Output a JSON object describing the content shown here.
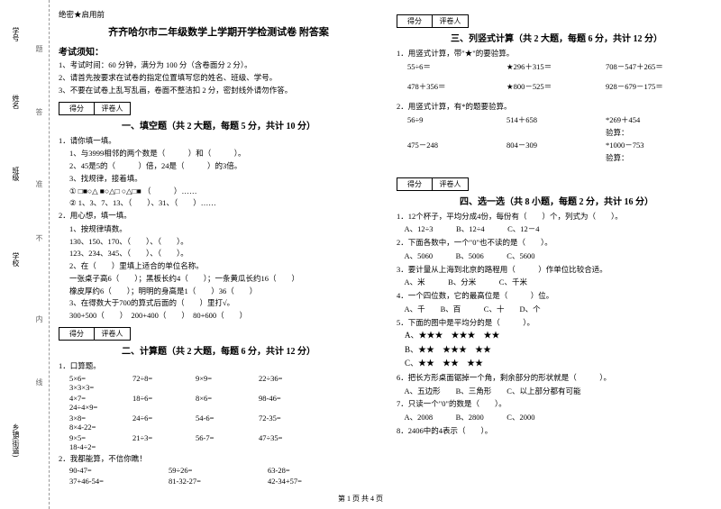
{
  "margin": {
    "labels": [
      "学号",
      "姓名",
      "班级",
      "学校",
      "乡镇(街道)"
    ],
    "side": [
      "题",
      "答",
      "准",
      "不",
      "内",
      "线",
      "封",
      ""
    ]
  },
  "secret": "绝密★启用前",
  "title": "齐齐哈尔市二年级数学上学期开学检测试卷 附答案",
  "notice": {
    "heading": "考试须知：",
    "items": [
      "1、考试时间：60 分钟，满分为 100 分（含卷面分 2 分）。",
      "2、请首先按要求在试卷的指定位置填写您的姓名、班级、学号。",
      "3、不要在试卷上乱写乱画，卷面不整洁扣 2 分，密封线外请勿作答。"
    ]
  },
  "scorebox": {
    "c1": "得分",
    "c2": "评卷人"
  },
  "sec1": {
    "title": "一、填空题（共 2 大题，每题 5 分，共计 10 分）",
    "q1": "1．请你填一填。",
    "q1_1": "1、与3999相邻的两个数是（　　　）和（　　　）。",
    "q1_2": "2、45是5的（　　　）倍，24是（　　　）的3倍。",
    "q1_3": "3、找规律，接着填。",
    "q1_3a": "① □■○△ ■○△□ ○△□■ （　　　）……",
    "q1_3b": "② 1、3、7、13、（　　）、31、（　　）……",
    "q2": "2．用心想，填一填。",
    "q2_1": "1、按规律填数。",
    "q2_1a": "130、150、170、（　　）、（　　）。",
    "q2_1b": "123、234、345、（　　）、（　　）。",
    "q2_2": "2、在（　　）里填上适合的单位名称。",
    "q2_2a": "一张桌子高6（　　）；黑板长约4（　　）；一条黄瓜长约16（　　）",
    "q2_2b": "橡皮厚约6（　　）；明明的身高是1（　　）36（　　）",
    "q2_3": "3、在得数大于700的算式后面的（　　）里打√。",
    "q2_3a": "300+500（　　）　200+400（　　）　80+600（　　）"
  },
  "sec2": {
    "title": "二、计算题（共 2 大题，每题 6 分，共计 12 分）",
    "q1": "1．口算题。",
    "rows": [
      [
        "5×6=",
        "72÷8=",
        "9×9=",
        "22÷36=",
        "3×3×3="
      ],
      [
        "4×7=",
        "18÷6=",
        "8×6=",
        "98-46=",
        "24÷4×9="
      ],
      [
        "3×8=",
        "24÷6=",
        "54-6=",
        "72-35=",
        "8×4-22="
      ],
      [
        "9×5=",
        "21÷3=",
        "56-7=",
        "47÷35=",
        "18-4÷2="
      ]
    ],
    "q2": "2．我都能算，不信你瞧！",
    "rows2": [
      [
        "90-47=",
        "59÷26=",
        "63-28="
      ],
      [
        "37+46-54=",
        "81-32-27=",
        "42-34+57="
      ]
    ]
  },
  "sec3": {
    "title": "三、列竖式计算（共 2 大题，每题 6 分，共计 12 分）",
    "q1": "1．用竖式计算，带\"★\"的要验算。",
    "rows": [
      [
        "55÷6＝",
        "★296＋315＝",
        "708－547＋265＝"
      ],
      [
        "478＋356＝",
        "★800－525＝",
        "928－679－175＝"
      ]
    ],
    "q2": "2．用竖式计算，有*的题要验算。",
    "rows2": [
      [
        "56÷9",
        "514＋658",
        "*269＋454"
      ],
      [
        "",
        "",
        "验算："
      ],
      [
        "475－248",
        "804－309",
        "*1000－753"
      ],
      [
        "",
        "",
        "验算："
      ]
    ]
  },
  "sec4": {
    "title": "四、选一选（共 8 小题，每题 2 分，共计 16 分）",
    "items": [
      "1．12个杯子，平均分成4份，每份有（　　）个，列式为（　　）。",
      "　A、12÷3　　　B、12÷4　　　C、12－4",
      "2．下面各数中，一个\"0\"也不读的是（　　）。",
      "　A、5060　　　B、5006　　　C、5600",
      "3．要计量从上海到北京的路程用（　　　）作单位比较合适。",
      "　A、米　　　B、分米　　　C、千米",
      "4．一个四位数，它的最高位是（　　　）位。",
      "　A、千　　B、百　　　C、十　　D、个",
      "5．下面的图中是平均分的是（　　　）。",
      "　A、★★★　★★★　★★",
      "　B、★★　★★★　★★",
      "　C、★★　★★　★★",
      "6．把长方形桌面锯掉一个角，剩余部分的形状就是（　　　）。",
      "　A、五边形　　B、三角形　　C、以上部分都有可能",
      "7．只读一个\"0\"的数是（　　）。",
      "　A、2008　　　B、2800　　　C、2000",
      "8．2406中的4表示（　　）。"
    ]
  },
  "footer": "第 1 页 共 4 页"
}
